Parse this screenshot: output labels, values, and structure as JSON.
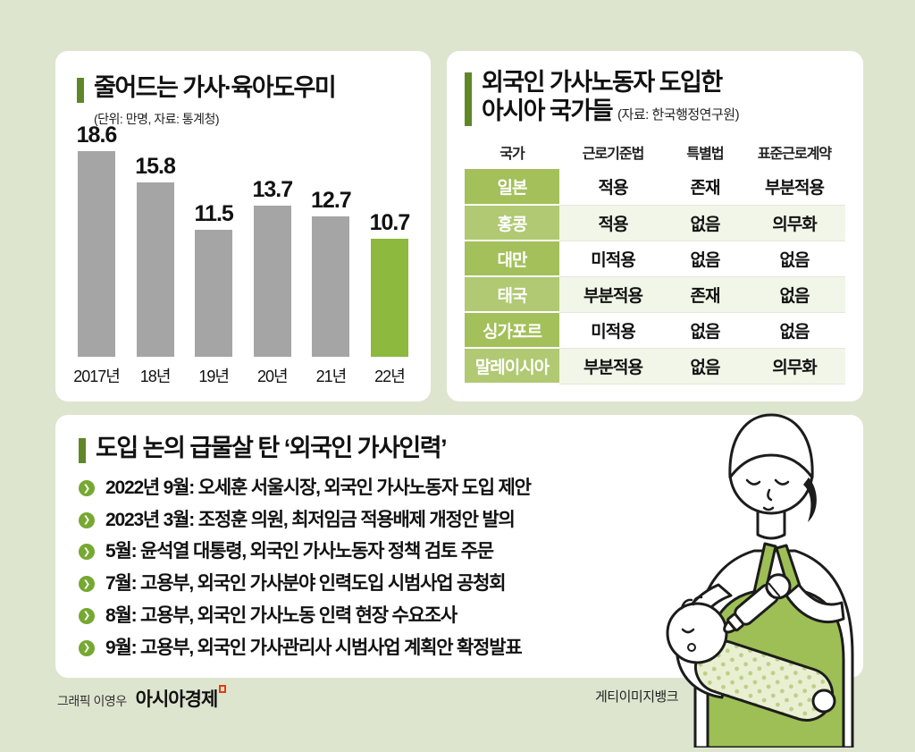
{
  "colors": {
    "background": "#dde5cf",
    "panel": "#ffffff",
    "accent_bar": "#5f8727",
    "bar_gray": "#a5a5a5",
    "bar_green": "#8cb93e",
    "bullet_green": "#76a832",
    "country_cell_green": "#a3c05a",
    "country_cell_green_alt": "#b0c972",
    "row_alt": "#f2f6e8",
    "apron_green": "#9dbf55",
    "logo_red": "#e8380d"
  },
  "chart_panel": {
    "title": "줄어드는 가사·육아도우미",
    "subtitle": "(단위: 만명, 자료: 통계청)"
  },
  "table_panel": {
    "title_line1": "외국인 가사노동자 도입한",
    "title_line2": "아시아 국가들",
    "source": "(자료: 한국행정연구원)"
  },
  "timeline_panel": {
    "title": "도입 논의 급물살 탄 ‘외국인 가사인력’",
    "bullet_glyph": "❯",
    "items": [
      "2022년 9월: 오세훈 서울시장, 외국인 가사노동자 도입 제안",
      "2023년 3월: 조정훈 의원, 최저임금 적용배제 개정안 발의",
      "5월: 윤석열 대통령, 외국인 가사노동자 정책 검토 주문",
      "7월: 고용부, 외국인 가사분야 인력도입 시범사업 공청회",
      "8월: 고용부, 외국인 가사노동 인력 현장 수요조사",
      "9월: 고용부, 외국인 가사관리사 시범사업 계획안 확정발표"
    ]
  },
  "credits": {
    "graphic": "그래픽 이영우",
    "brand": "아시아경제",
    "image_source": "게티이미지뱅크"
  },
  "chart_data": [
    {
      "type": "bar",
      "title": "줄어드는 가사·육아도우미",
      "unit_note": "(단위: 만명, 자료: 통계청)",
      "categories": [
        "2017년",
        "18년",
        "19년",
        "20년",
        "21년",
        "22년"
      ],
      "values": [
        18.6,
        15.8,
        11.5,
        13.7,
        12.7,
        10.7
      ],
      "ylim": [
        0,
        20
      ],
      "highlight_index": 5,
      "bar_color": "#a5a5a5",
      "highlight_color": "#8cb93e",
      "legend": "none",
      "grid": false
    },
    {
      "type": "table",
      "title": "외국인 가사노동자 도입한 아시아 국가들",
      "source": "(자료: 한국행정연구원)",
      "columns": [
        "국가",
        "근로기준법",
        "특별법",
        "표준근로계약"
      ],
      "rows": [
        [
          "일본",
          "적용",
          "존재",
          "부분적용"
        ],
        [
          "홍콩",
          "적용",
          "없음",
          "의무화"
        ],
        [
          "대만",
          "미적용",
          "없음",
          "없음"
        ],
        [
          "태국",
          "부분적용",
          "존재",
          "없음"
        ],
        [
          "싱가포르",
          "미적용",
          "없음",
          "없음"
        ],
        [
          "말레이시아",
          "부분적용",
          "없음",
          "의무화"
        ]
      ]
    }
  ]
}
